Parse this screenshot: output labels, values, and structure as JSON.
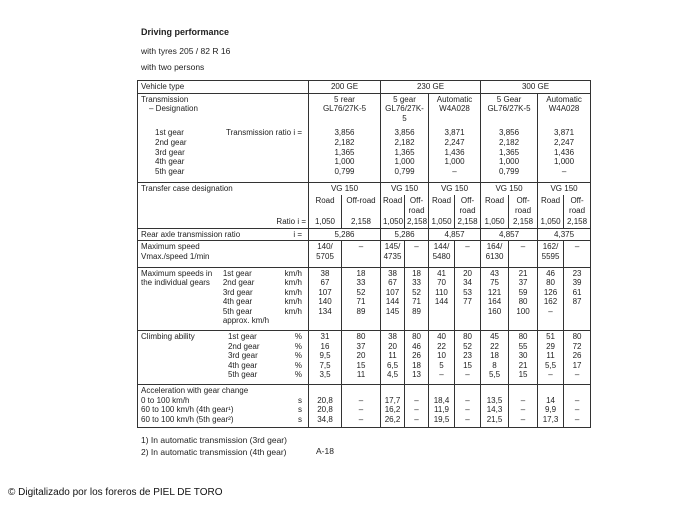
{
  "header": {
    "title": "Driving performance",
    "subtitle": "with tyres 205 / 82 R 16",
    "persons": "with two persons"
  },
  "table": {
    "gears": [
      "1st gear",
      "2nd gear",
      "3rd gear",
      "4th gear",
      "5th gear"
    ],
    "vehicle_type": {
      "label": "Vehicle type",
      "models": [
        "200 GE",
        "230 GE",
        "300 GE"
      ]
    },
    "transmission": {
      "label": "Transmission",
      "sublabel": "– Designation",
      "columns": [
        [
          "5 rear",
          "GL76/27K-5"
        ],
        [
          "5 gear",
          "GL76/27K-5"
        ],
        [
          "Automatic",
          "W4A028"
        ],
        [
          "5 Gear",
          "GL76/27K-5"
        ],
        [
          "Automatic",
          "W4A028"
        ]
      ]
    },
    "gear_ratio": {
      "label": "Transmission ratio i =",
      "columns": [
        [
          "3,856",
          "2,182",
          "1,365",
          "1,000",
          "0,799"
        ],
        [
          "3,856",
          "2,182",
          "1,365",
          "1,000",
          "0,799"
        ],
        [
          "3,871",
          "2,247",
          "1,436",
          "1,000",
          "–"
        ],
        [
          "3,856",
          "2,182",
          "1,365",
          "1,000",
          "0,799"
        ],
        [
          "3,871",
          "2,247",
          "1,436",
          "1,000",
          "–"
        ]
      ]
    },
    "transfer_case": {
      "label": "Transfer case designation",
      "designation": "VG 150",
      "road": "Road",
      "off_road": "Off-road",
      "ratio_label": "Ratio i =",
      "ratios": [
        "1,050",
        "2,158"
      ]
    },
    "rear_axle": {
      "label": "Rear axle transmission ratio",
      "unit": "i =",
      "values": [
        "5,286",
        "5,286",
        "4,857",
        "4,857",
        "4,375"
      ]
    },
    "max_speed": {
      "label": "Maximum speed",
      "sublabel": "Vmax./speed 1/min",
      "cells": [
        [
          "140/",
          "5705"
        ],
        [
          "–"
        ],
        [
          "145/",
          "4735"
        ],
        [
          "–"
        ],
        [
          "144/",
          "5480"
        ],
        [
          "–"
        ],
        [
          "164/",
          "6130"
        ],
        [
          "–"
        ],
        [
          "162/",
          "5595"
        ],
        [
          "–"
        ]
      ]
    },
    "gear_speeds": {
      "label": "Maximum speeds in the individual gears",
      "unit": "km/h",
      "approx": "approx. km/h",
      "cells": [
        [
          "38",
          "67",
          "107",
          "140",
          "134"
        ],
        [
          "18",
          "33",
          "52",
          "71",
          "89"
        ],
        [
          "38",
          "67",
          "107",
          "144",
          "145"
        ],
        [
          "18",
          "33",
          "52",
          "71",
          "89"
        ],
        [
          "41",
          "70",
          "110",
          "144"
        ],
        [
          "20",
          "34",
          "53",
          "77"
        ],
        [
          "43",
          "75",
          "121",
          "164",
          "160"
        ],
        [
          "21",
          "37",
          "59",
          "80",
          "100"
        ],
        [
          "46",
          "80",
          "126",
          "162",
          "–"
        ],
        [
          "23",
          "39",
          "61",
          "87"
        ]
      ]
    },
    "climbing": {
      "label": "Climbing ability",
      "unit": "%",
      "cells": [
        [
          "31",
          "16",
          "9,5",
          "7,5",
          "3,5"
        ],
        [
          "80",
          "37",
          "20",
          "15",
          "11"
        ],
        [
          "38",
          "20",
          "11",
          "6,5",
          "4,5"
        ],
        [
          "80",
          "46",
          "26",
          "18",
          "13"
        ],
        [
          "40",
          "22",
          "10",
          "5",
          "–"
        ],
        [
          "80",
          "52",
          "23",
          "15",
          "–"
        ],
        [
          "45",
          "22",
          "18",
          "8",
          "5,5"
        ],
        [
          "80",
          "55",
          "30",
          "21",
          "15"
        ],
        [
          "51",
          "29",
          "11",
          "5,5",
          "–"
        ],
        [
          "80",
          "72",
          "26",
          "17",
          "–"
        ]
      ]
    },
    "acceleration": {
      "label": "Acceleration with gear change",
      "rows": [
        "0 to 100 km/h",
        "60 to 100 km/h (4th gear¹)",
        "60 to 100 km/h (5th gear²)"
      ],
      "unit": "s",
      "cells": [
        [
          "20,8",
          "20,8",
          "34,8"
        ],
        [
          "–",
          "–",
          "–"
        ],
        [
          "17,7",
          "16,2",
          "26,2"
        ],
        [
          "–",
          "–",
          "–"
        ],
        [
          "18,4",
          "11,9",
          "19,5"
        ],
        [
          "–",
          "–",
          "–"
        ],
        [
          "13,5",
          "14,3",
          "21,5"
        ],
        [
          "–",
          "–",
          "–"
        ],
        [
          "14",
          "9,9",
          "17,3"
        ],
        [
          "–",
          "–",
          "–"
        ]
      ]
    }
  },
  "footnotes": [
    "1) In automatic transmission (3rd gear)",
    "2) In automatic transmission (4th gear)"
  ],
  "page_number": "A-18",
  "credit": "© Digitalizado por los foreros de PIEL DE TORO"
}
